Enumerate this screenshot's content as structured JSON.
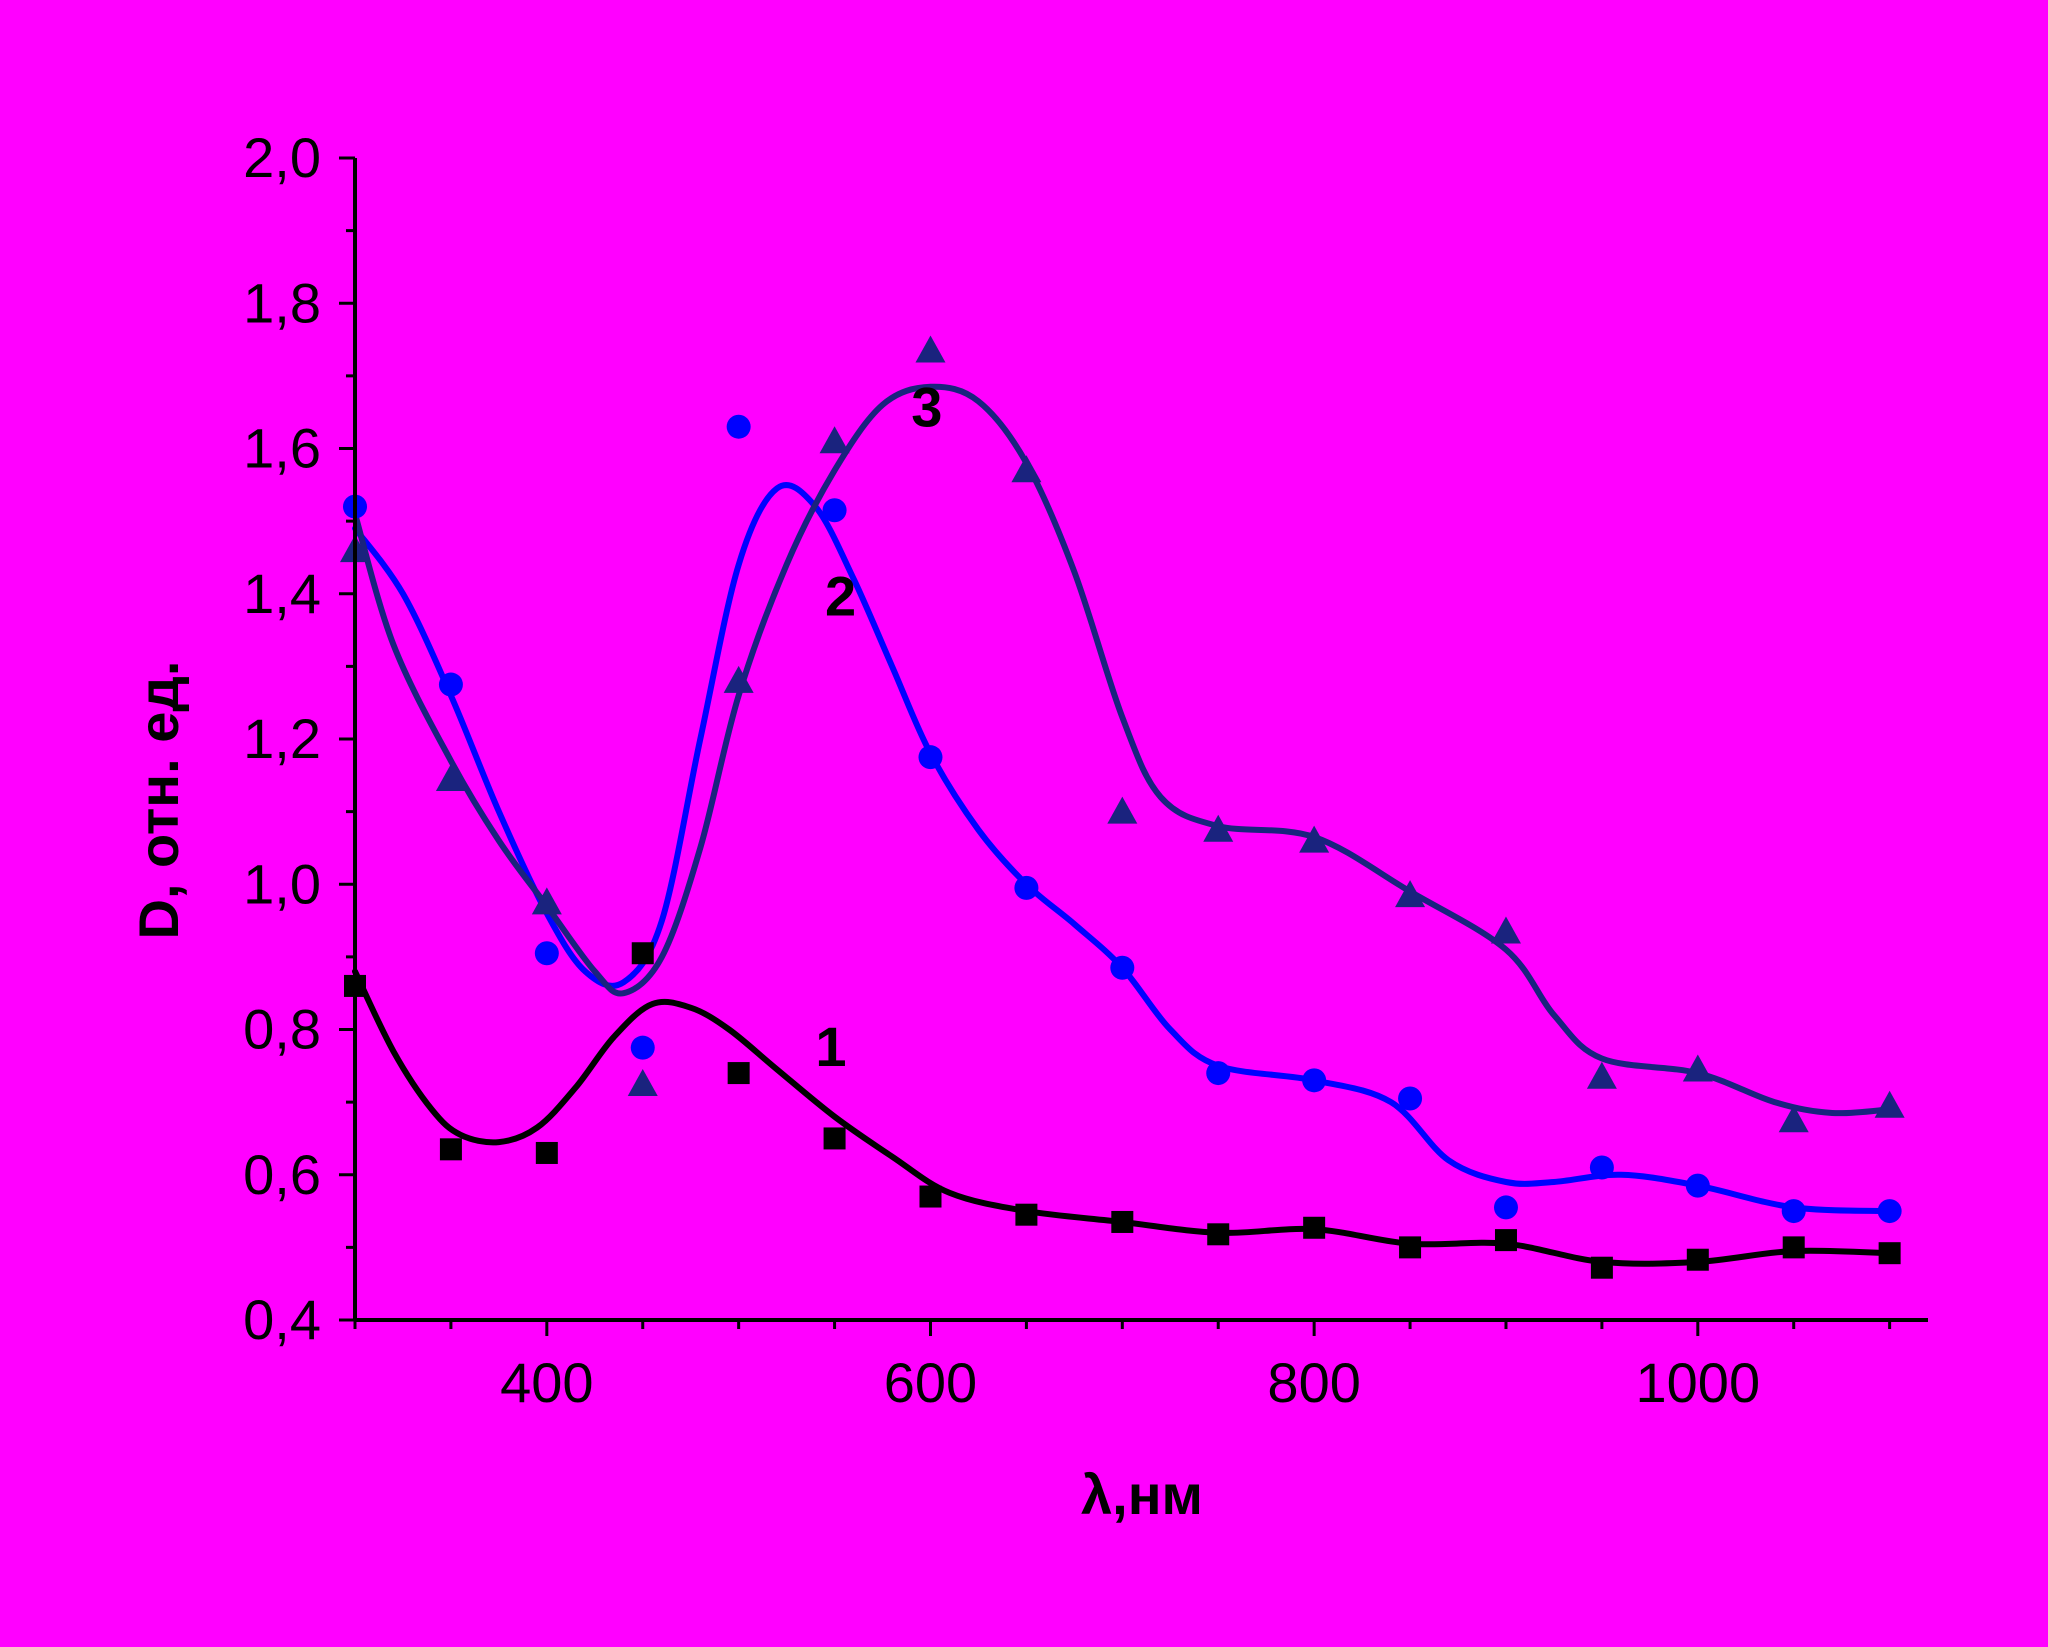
{
  "colors": {
    "background": "#FF00FF",
    "axis": "#000000",
    "series_1": "#000000",
    "series_2": "#0000FF",
    "series_3": "#1A237E"
  },
  "chart_data": {
    "type": "scatter",
    "xlabel": "λ,нм",
    "ylabel": "D, отн. ед.",
    "xlim": [
      300,
      1120
    ],
    "ylim": [
      0.4,
      2.0
    ],
    "x_ticks": [
      400,
      600,
      800,
      1000
    ],
    "x_tick_labels": [
      "400",
      "600",
      "800",
      "1000"
    ],
    "y_ticks": [
      0.4,
      0.6,
      0.8,
      1.0,
      1.2,
      1.4,
      1.6,
      1.8,
      2.0
    ],
    "y_tick_labels": [
      "0,4",
      "0,6",
      "0,8",
      "1,0",
      "1,2",
      "1,4",
      "1,6",
      "1,8",
      "2,0"
    ],
    "grid": false,
    "series": [
      {
        "name": "1",
        "marker": "square",
        "color": "#000000",
        "label_at": [
          540,
          0.75
        ],
        "x": [
          300,
          350,
          400,
          450,
          500,
          550,
          600,
          650,
          700,
          750,
          800,
          850,
          900,
          950,
          1000,
          1050,
          1100
        ],
        "y": [
          0.86,
          0.635,
          0.63,
          0.905,
          0.74,
          0.65,
          0.57,
          0.545,
          0.535,
          0.518,
          0.527,
          0.5,
          0.51,
          0.472,
          0.483,
          0.5,
          0.492
        ],
        "curve": [
          [
            300,
            0.88
          ],
          [
            320,
            0.77
          ],
          [
            340,
            0.69
          ],
          [
            355,
            0.655
          ],
          [
            375,
            0.645
          ],
          [
            395,
            0.665
          ],
          [
            415,
            0.72
          ],
          [
            435,
            0.79
          ],
          [
            455,
            0.835
          ],
          [
            475,
            0.83
          ],
          [
            495,
            0.8
          ],
          [
            520,
            0.745
          ],
          [
            550,
            0.68
          ],
          [
            580,
            0.625
          ],
          [
            610,
            0.575
          ],
          [
            650,
            0.55
          ],
          [
            700,
            0.535
          ],
          [
            750,
            0.52
          ],
          [
            800,
            0.525
          ],
          [
            850,
            0.505
          ],
          [
            900,
            0.505
          ],
          [
            950,
            0.48
          ],
          [
            1000,
            0.48
          ],
          [
            1050,
            0.495
          ],
          [
            1100,
            0.492
          ]
        ]
      },
      {
        "name": "2",
        "marker": "circle",
        "color": "#0000FF",
        "label_at": [
          545,
          1.37
        ],
        "x": [
          300,
          350,
          400,
          450,
          500,
          550,
          600,
          650,
          700,
          750,
          800,
          850,
          900,
          950,
          1000,
          1050,
          1100
        ],
        "y": [
          1.52,
          1.275,
          0.905,
          0.775,
          1.63,
          1.515,
          1.175,
          0.995,
          0.885,
          0.74,
          0.73,
          0.705,
          0.555,
          0.61,
          0.585,
          0.55,
          0.55
        ],
        "curve": [
          [
            300,
            1.49
          ],
          [
            325,
            1.4
          ],
          [
            350,
            1.26
          ],
          [
            375,
            1.1
          ],
          [
            400,
            0.96
          ],
          [
            420,
            0.88
          ],
          [
            440,
            0.865
          ],
          [
            460,
            0.95
          ],
          [
            480,
            1.2
          ],
          [
            500,
            1.44
          ],
          [
            520,
            1.545
          ],
          [
            540,
            1.52
          ],
          [
            560,
            1.42
          ],
          [
            580,
            1.3
          ],
          [
            600,
            1.18
          ],
          [
            625,
            1.075
          ],
          [
            650,
            1.0
          ],
          [
            675,
            0.945
          ],
          [
            700,
            0.885
          ],
          [
            725,
            0.8
          ],
          [
            750,
            0.75
          ],
          [
            800,
            0.73
          ],
          [
            840,
            0.7
          ],
          [
            870,
            0.62
          ],
          [
            900,
            0.59
          ],
          [
            925,
            0.59
          ],
          [
            960,
            0.6
          ],
          [
            1000,
            0.585
          ],
          [
            1050,
            0.555
          ],
          [
            1100,
            0.55
          ]
        ]
      },
      {
        "name": "3",
        "marker": "triangle",
        "color": "#1A237E",
        "label_at": [
          590,
          1.63
        ],
        "x": [
          300,
          350,
          400,
          450,
          500,
          550,
          600,
          650,
          700,
          750,
          800,
          850,
          900,
          950,
          1000,
          1050,
          1100
        ],
        "y": [
          1.46,
          1.145,
          0.975,
          0.725,
          1.28,
          1.61,
          1.735,
          1.57,
          1.1,
          1.075,
          1.06,
          0.985,
          0.935,
          0.735,
          0.745,
          0.675,
          0.695
        ],
        "curve": [
          [
            300,
            1.51
          ],
          [
            320,
            1.33
          ],
          [
            350,
            1.17
          ],
          [
            375,
            1.06
          ],
          [
            400,
            0.97
          ],
          [
            425,
            0.88
          ],
          [
            440,
            0.85
          ],
          [
            460,
            0.9
          ],
          [
            480,
            1.05
          ],
          [
            500,
            1.26
          ],
          [
            525,
            1.44
          ],
          [
            550,
            1.57
          ],
          [
            575,
            1.66
          ],
          [
            600,
            1.685
          ],
          [
            625,
            1.665
          ],
          [
            650,
            1.58
          ],
          [
            675,
            1.43
          ],
          [
            700,
            1.23
          ],
          [
            720,
            1.12
          ],
          [
            750,
            1.08
          ],
          [
            800,
            1.065
          ],
          [
            850,
            0.99
          ],
          [
            900,
            0.91
          ],
          [
            925,
            0.82
          ],
          [
            950,
            0.76
          ],
          [
            1000,
            0.74
          ],
          [
            1040,
            0.7
          ],
          [
            1070,
            0.685
          ],
          [
            1100,
            0.69
          ]
        ]
      }
    ]
  }
}
